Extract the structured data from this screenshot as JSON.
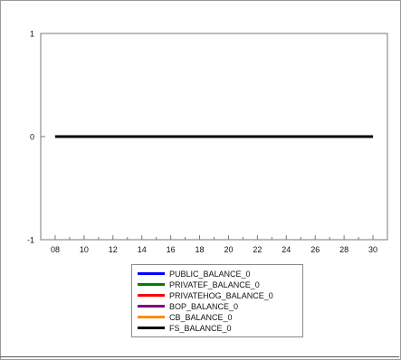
{
  "chart_data": {
    "type": "line",
    "x": [
      "08",
      "09",
      "10",
      "11",
      "12",
      "13",
      "14",
      "15",
      "16",
      "17",
      "18",
      "19",
      "20",
      "21",
      "22",
      "23",
      "24",
      "25",
      "26",
      "27",
      "28",
      "29",
      "30"
    ],
    "xticks": [
      "08",
      "10",
      "12",
      "14",
      "16",
      "18",
      "20",
      "22",
      "24",
      "26",
      "28",
      "30"
    ],
    "yticks": [
      "1",
      "0",
      "-1"
    ],
    "ylim": [
      -1,
      1
    ],
    "xlim": [
      7,
      31
    ],
    "grid": false,
    "legend_position": "bottom",
    "series": [
      {
        "name": "PUBLIC_BALANCE_0",
        "color": "#0000ff",
        "values": [
          0,
          0,
          0,
          0,
          0,
          0,
          0,
          0,
          0,
          0,
          0,
          0,
          0,
          0,
          0,
          0,
          0,
          0,
          0,
          0,
          0,
          0,
          0
        ]
      },
      {
        "name": "PRIVATEF_BALANCE_0",
        "color": "#008000",
        "values": [
          0,
          0,
          0,
          0,
          0,
          0,
          0,
          0,
          0,
          0,
          0,
          0,
          0,
          0,
          0,
          0,
          0,
          0,
          0,
          0,
          0,
          0,
          0
        ]
      },
      {
        "name": "PRIVATEHOG_BALANCE_0",
        "color": "#ff0000",
        "values": [
          0,
          0,
          0,
          0,
          0,
          0,
          0,
          0,
          0,
          0,
          0,
          0,
          0,
          0,
          0,
          0,
          0,
          0,
          0,
          0,
          0,
          0,
          0
        ]
      },
      {
        "name": "BOP_BALANCE_0",
        "color": "#800080",
        "values": [
          0,
          0,
          0,
          0,
          0,
          0,
          0,
          0,
          0,
          0,
          0,
          0,
          0,
          0,
          0,
          0,
          0,
          0,
          0,
          0,
          0,
          0,
          0
        ]
      },
      {
        "name": "CB_BALANCE_0",
        "color": "#ff8c00",
        "values": [
          0,
          0,
          0,
          0,
          0,
          0,
          0,
          0,
          0,
          0,
          0,
          0,
          0,
          0,
          0,
          0,
          0,
          0,
          0,
          0,
          0,
          0,
          0
        ]
      },
      {
        "name": "FS_BALANCE_0",
        "color": "#000000",
        "values": [
          0,
          0,
          0,
          0,
          0,
          0,
          0,
          0,
          0,
          0,
          0,
          0,
          0,
          0,
          0,
          0,
          0,
          0,
          0,
          0,
          0,
          0,
          0
        ]
      }
    ]
  }
}
